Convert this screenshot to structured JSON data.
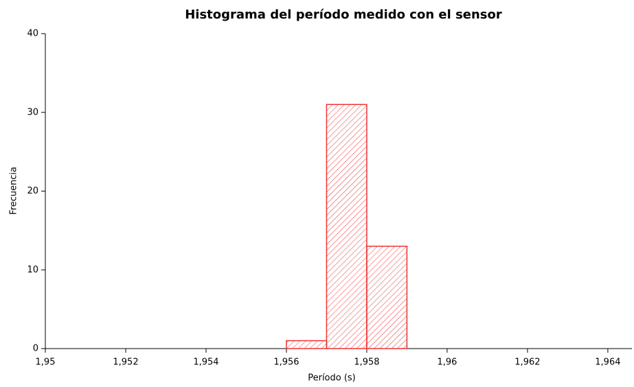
{
  "chart_data": {
    "type": "histogram",
    "title": "Histograma del período medido con el sensor",
    "x_label": "Período (s)",
    "y_label": "Frecuencia",
    "bins": [
      1.956,
      1.957,
      1.958,
      1.959
    ],
    "values": [
      1,
      31,
      13
    ],
    "color": "#ee3333",
    "hatch": true,
    "xlim": [
      1.95,
      1.9646
    ],
    "xticks": [
      {
        "value": 1.95,
        "label": "1,95"
      },
      {
        "value": 1.952,
        "label": "1,952"
      },
      {
        "value": 1.954,
        "label": "1,954"
      },
      {
        "value": 1.956,
        "label": "1,956"
      },
      {
        "value": 1.958,
        "label": "1,958"
      },
      {
        "value": 1.96,
        "label": "1,96"
      },
      {
        "value": 1.962,
        "label": "1,962"
      },
      {
        "value": 1.964,
        "label": "1,964"
      }
    ],
    "ylim": [
      0,
      40
    ],
    "yticks": [
      0,
      10,
      20,
      30,
      40
    ]
  }
}
